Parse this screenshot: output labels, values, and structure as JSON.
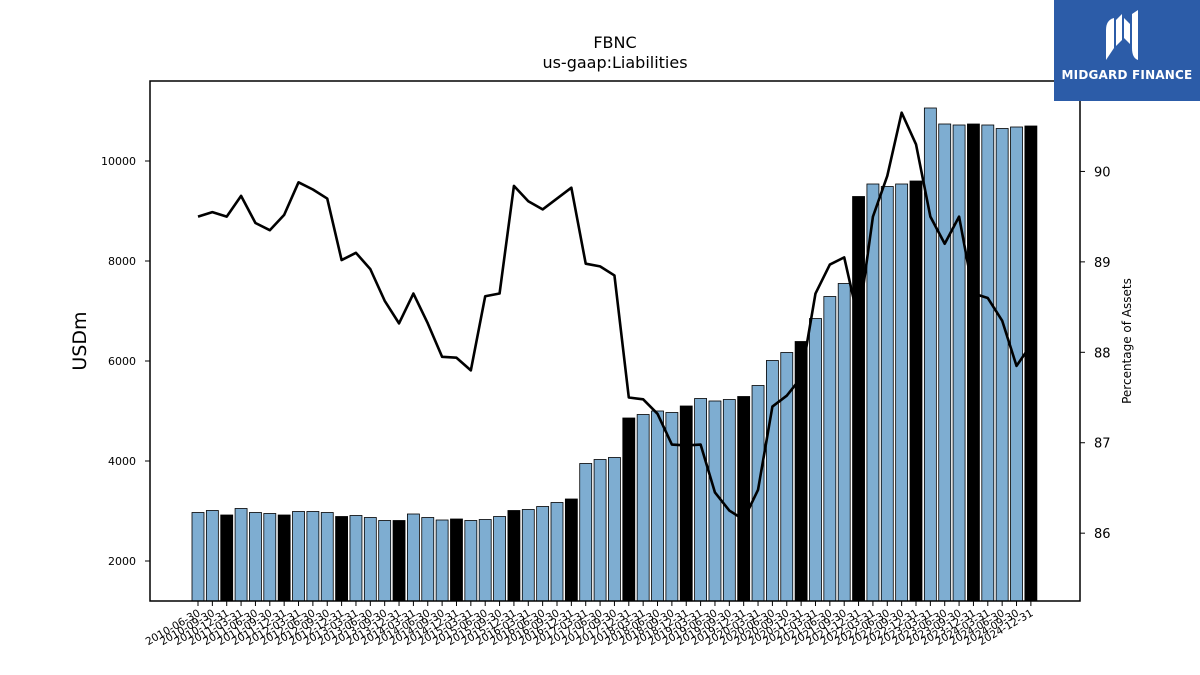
{
  "chart_data": {
    "type": "bar",
    "title": "FBNC",
    "subtitle": "us-gaap:Liabilities",
    "ylabel": "USDm",
    "y2label": "Percentage of Assets",
    "ylim": [
      1200,
      11600
    ],
    "y2lim": [
      85.25,
      91.0
    ],
    "yticks": [
      2000,
      4000,
      6000,
      8000,
      10000
    ],
    "y2ticks": [
      86,
      87,
      88,
      89,
      90
    ],
    "colors": {
      "light_bar": "#7eadd1",
      "dark_bar": "#000000",
      "line": "#000000"
    },
    "categories": [
      "2010-06-30",
      "2010-09-30",
      "2010-12-31",
      "2011-03-31",
      "2011-06-30",
      "2011-09-30",
      "2011-12-31",
      "2012-03-31",
      "2012-06-30",
      "2012-09-30",
      "2012-12-31",
      "2013-03-31",
      "2013-06-30",
      "2013-09-30",
      "2013-12-31",
      "2014-03-31",
      "2014-06-30",
      "2014-09-30",
      "2014-12-31",
      "2015-03-31",
      "2015-06-30",
      "2015-09-30",
      "2015-12-31",
      "2016-03-31",
      "2016-06-30",
      "2016-09-30",
      "2016-12-31",
      "2017-03-31",
      "2017-06-30",
      "2017-09-30",
      "2017-12-31",
      "2018-03-31",
      "2018-06-30",
      "2018-09-30",
      "2018-12-31",
      "2019-03-31",
      "2019-06-30",
      "2019-09-30",
      "2019-12-31",
      "2020-03-31",
      "2020-06-30",
      "2020-09-30",
      "2020-12-31",
      "2021-03-31",
      "2021-06-30",
      "2021-09-30",
      "2021-12-31",
      "2022-03-31",
      "2022-06-30",
      "2022-09-30",
      "2022-12-31",
      "2023-03-31",
      "2023-06-30",
      "2023-09-30",
      "2023-12-31",
      "2024-03-31",
      "2024-06-30",
      "2024-09-30",
      "2024-12-31"
    ],
    "xtick_labels": [
      "2010-06-30",
      "2010-09-30",
      "2010-12-31",
      "2011-03-31",
      "2011-06-30",
      "2011-09-30",
      "2011-12-31",
      "2012-03-31",
      "2012-06-30",
      "2012-09-30",
      "2012-12-31",
      "2013-03-31",
      "2013-06-30",
      "2013-09-30",
      "2013-12-31",
      "2014-03-31",
      "2014-06-30",
      "2014-09-30",
      "2014-12-31",
      "2015-03-31",
      "2015-06-30",
      "2015-09-30",
      "2015-12-31",
      "2016-03-31",
      "2016-06-30",
      "2016-09-30",
      "2016-12-31",
      "2017-03-31",
      "2017-06-30",
      "2017-09-30",
      "2017-12-31",
      "2018-03-31",
      "2018-06-30",
      "2018-09-30",
      "2018-12-31",
      "2019-03-31",
      "2019-06-30",
      "2019-09-30",
      "2019-12-31",
      "2020-03-31",
      "2020-06-30",
      "2020-09-30",
      "2020-12-31",
      "2021-03-31",
      "2021-06-30",
      "2021-09-30",
      "2021-12-31",
      "2022-03-31",
      "2022-06-30",
      "2022-09-30",
      "2022-12-31",
      "2023-03-31",
      "2023-06-30",
      "2023-09-30",
      "2023-12-31",
      "2024-03-31",
      "2024-06-30",
      "2024-09-30",
      "2024-12-31"
    ],
    "dark_bar_indices": [
      2,
      6,
      10,
      14,
      18,
      22,
      26,
      30,
      34,
      38,
      42,
      46,
      50,
      54,
      58
    ],
    "series": [
      {
        "type": "bar",
        "axis": "left",
        "values": [
          2970,
          3010,
          2920,
          3050,
          2970,
          2950,
          2920,
          2990,
          2990,
          2970,
          2890,
          2910,
          2870,
          2810,
          2810,
          2940,
          2870,
          2820,
          2840,
          2810,
          2830,
          2890,
          3010,
          3030,
          3090,
          3170,
          3240,
          3950,
          4030,
          4070,
          4860,
          4930,
          5000,
          4970,
          5100,
          5250,
          5200,
          5230,
          5290,
          5510,
          6010,
          6170,
          6390,
          6850,
          7290,
          7550,
          9290,
          9540,
          9490,
          9540,
          9600,
          11060,
          10740,
          10720,
          10740,
          10720,
          10650,
          10680,
          10700
        ]
      },
      {
        "type": "line",
        "axis": "right",
        "values": [
          89.5,
          89.55,
          89.5,
          89.73,
          89.43,
          89.35,
          89.52,
          89.88,
          89.8,
          89.7,
          89.02,
          89.1,
          88.92,
          88.57,
          88.32,
          88.65,
          88.32,
          87.95,
          87.94,
          87.8,
          88.62,
          88.65,
          89.84,
          89.67,
          89.58,
          89.7,
          89.82,
          88.98,
          88.95,
          88.85,
          87.5,
          87.48,
          87.32,
          86.98,
          86.97,
          86.98,
          86.45,
          86.25,
          86.15,
          86.48,
          87.4,
          87.52,
          87.72,
          88.65,
          88.97,
          89.05,
          88.35,
          89.5,
          89.95,
          90.65,
          90.3,
          89.5,
          89.2,
          89.5,
          88.65,
          88.6,
          88.35,
          87.85,
          88.08
        ]
      }
    ]
  },
  "logo": {
    "text": "MIDGARD FINANCE"
  }
}
